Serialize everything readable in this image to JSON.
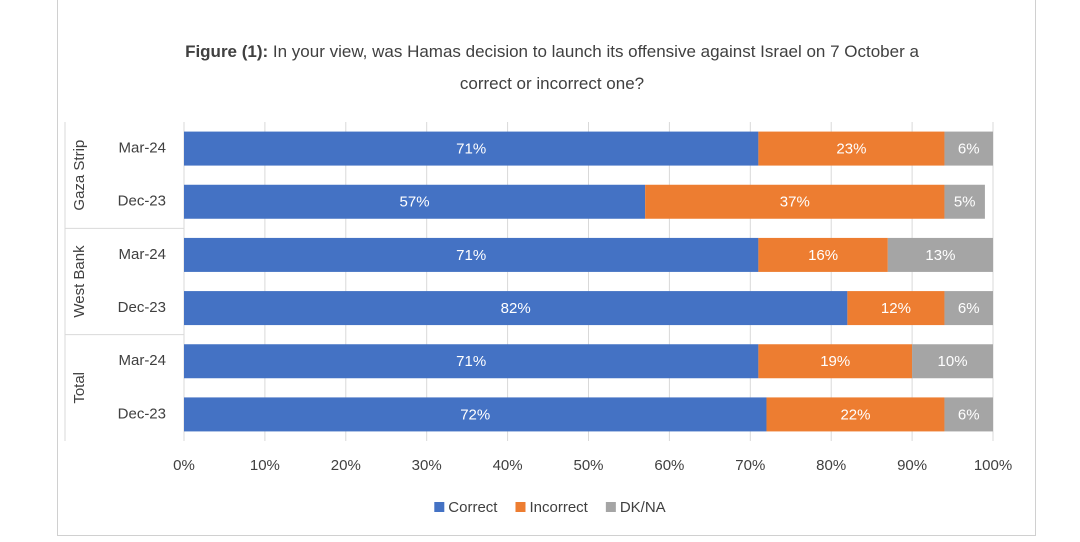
{
  "chart_data": {
    "type": "stacked_barh",
    "title_label": "Figure (1):",
    "title": "In your view, was Hamas decision to launch its offensive against Israel on 7 October a correct or incorrect one?",
    "groups": [
      {
        "name": "Gaza Strip",
        "categories": [
          "Mar-24",
          "Dec-23"
        ]
      },
      {
        "name": "West Bank",
        "categories": [
          "Mar-24",
          "Dec-23"
        ]
      },
      {
        "name": "Total",
        "categories": [
          "Mar-24",
          "Dec-23"
        ]
      }
    ],
    "series": [
      {
        "name": "Correct",
        "color": "#4472c4",
        "values": [
          71,
          57,
          71,
          82,
          71,
          72
        ],
        "value_labels": [
          "71%",
          "57%",
          "71%",
          "82%",
          "71%",
          "72%"
        ]
      },
      {
        "name": "Incorrect",
        "color": "#ed7d31",
        "values": [
          23,
          37,
          16,
          12,
          19,
          22
        ],
        "value_labels": [
          "23%",
          "37%",
          "16%",
          "12%",
          "19%",
          "22%"
        ]
      },
      {
        "name": "DK/NA",
        "color": "#a5a5a5",
        "values": [
          6,
          5,
          13,
          6,
          10,
          6
        ],
        "value_labels": [
          "6%",
          "5%",
          "13%",
          "6%",
          "10%",
          "6%"
        ]
      }
    ],
    "xlim": [
      0,
      100
    ],
    "xticks": [
      {
        "value": 0,
        "label": "0%"
      },
      {
        "value": 10,
        "label": "10%"
      },
      {
        "value": 20,
        "label": "20%"
      },
      {
        "value": 30,
        "label": "30%"
      },
      {
        "value": 40,
        "label": "40%"
      },
      {
        "value": 50,
        "label": "50%"
      },
      {
        "value": 60,
        "label": "60%"
      },
      {
        "value": 70,
        "label": "70%"
      },
      {
        "value": 80,
        "label": "80%"
      },
      {
        "value": 90,
        "label": "90%"
      },
      {
        "value": 100,
        "label": "100%"
      }
    ],
    "grid": true,
    "legend": "bottom"
  }
}
